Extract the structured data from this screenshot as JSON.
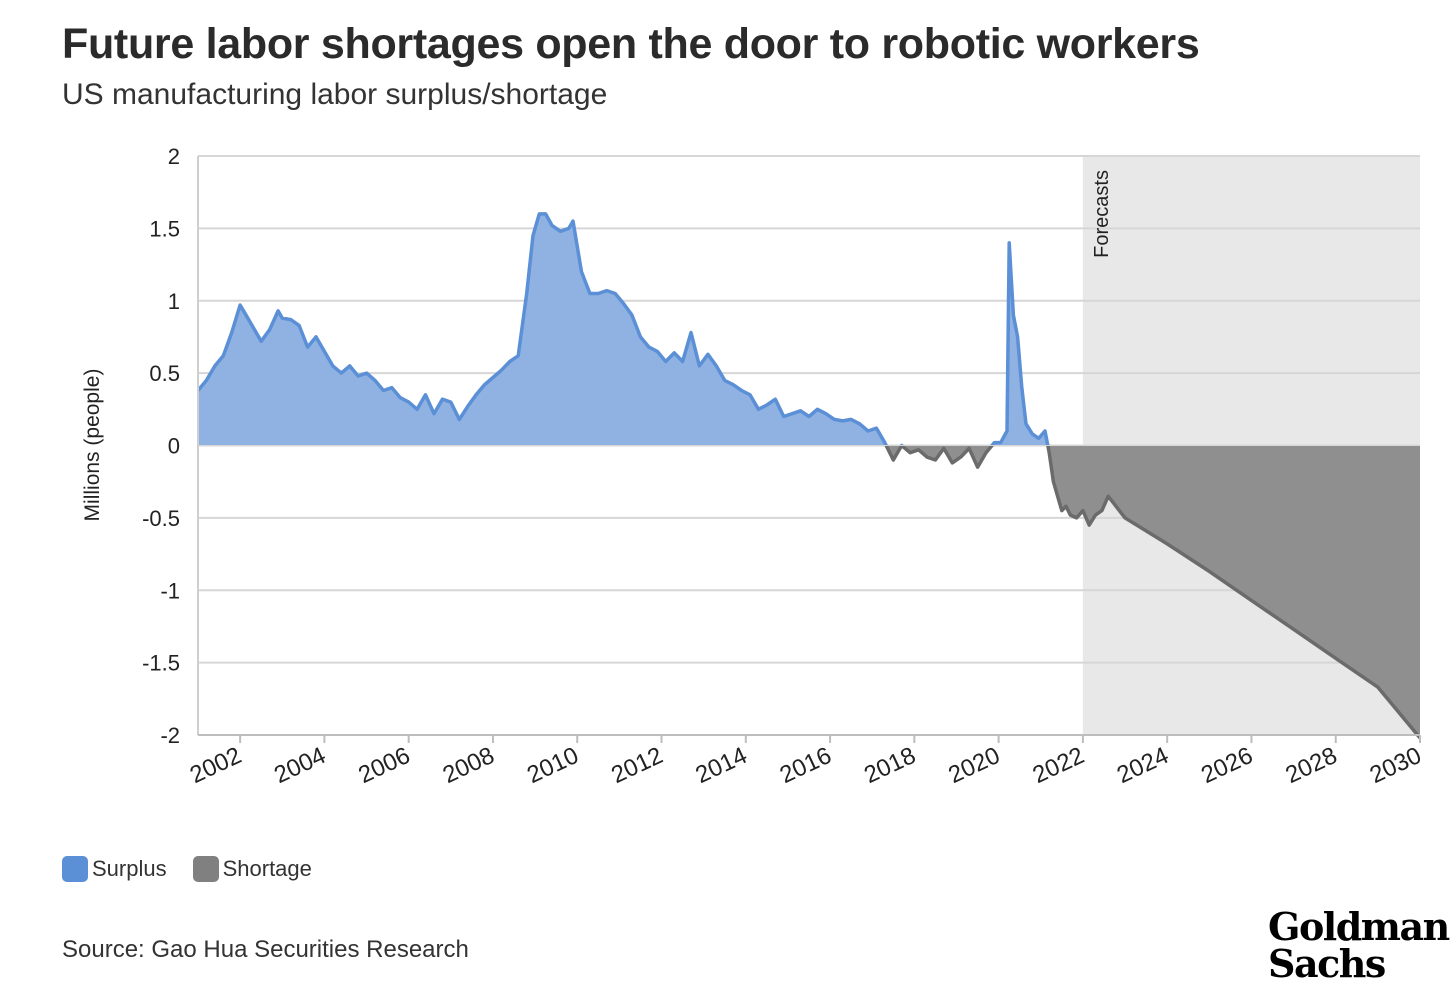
{
  "title": "Future labor shortages open the door to robotic workers",
  "subtitle": "US manufacturing labor surplus/shortage",
  "source": "Source: Gao Hua Securities Research",
  "logo": {
    "line1": "Goldman",
    "line2": "Sachs"
  },
  "colors": {
    "surplus": "#8fb2e3",
    "surplus_line": "#5b8fd6",
    "shortage": "#8f8f8f",
    "shortage_line": "#6b6b6b",
    "forecast_shade": "#e8e8e8",
    "grid": "#d6d6d6"
  },
  "chart_data": {
    "type": "area",
    "title": "Future labor shortages open the door to robotic workers",
    "subtitle": "US manufacturing labor surplus/shortage",
    "ylabel": "Millions (people)",
    "xlabel": "",
    "xlim": [
      2001.0,
      2030.0
    ],
    "ylim": [
      -2,
      2
    ],
    "yticks": [
      2,
      1.5,
      1,
      0.5,
      0,
      -0.5,
      -1,
      -1.5,
      -2
    ],
    "ytick_labels": [
      "2",
      "1.5",
      "1",
      "0.5",
      "0",
      "-0.5",
      "-1",
      "-1.5",
      "-2"
    ],
    "xticks": [
      2002,
      2004,
      2006,
      2008,
      2010,
      2012,
      2014,
      2016,
      2018,
      2020,
      2022,
      2024,
      2026,
      2028,
      2030
    ],
    "xtick_labels": [
      "2002",
      "2004",
      "2006",
      "2008",
      "2010",
      "2012",
      "2014",
      "2016",
      "2018",
      "2020",
      "2022",
      "2024",
      "2026",
      "2028",
      "2030"
    ],
    "forecast": {
      "start": 2022.0,
      "end": 2030.0,
      "label": "Forecasts"
    },
    "grid": true,
    "legend": {
      "position": "bottom-left",
      "entries": [
        {
          "name": "Surplus",
          "color": "#5b8fd6"
        },
        {
          "name": "Shortage",
          "color": "#808080"
        }
      ]
    },
    "series": [
      {
        "name": "US manufacturing labor surplus/shortage",
        "x": [
          2001.0,
          2001.2,
          2001.4,
          2001.6,
          2001.8,
          2002.0,
          2002.1,
          2002.3,
          2002.5,
          2002.7,
          2002.9,
          2003.0,
          2003.2,
          2003.4,
          2003.6,
          2003.8,
          2004.0,
          2004.2,
          2004.4,
          2004.6,
          2004.8,
          2005.0,
          2005.2,
          2005.4,
          2005.6,
          2005.8,
          2006.0,
          2006.2,
          2006.4,
          2006.6,
          2006.8,
          2007.0,
          2007.2,
          2007.4,
          2007.6,
          2007.8,
          2008.0,
          2008.2,
          2008.4,
          2008.6,
          2008.8,
          2008.95,
          2009.1,
          2009.25,
          2009.4,
          2009.6,
          2009.8,
          2009.9,
          2010.1,
          2010.3,
          2010.5,
          2010.7,
          2010.9,
          2011.1,
          2011.3,
          2011.5,
          2011.7,
          2011.9,
          2012.1,
          2012.3,
          2012.5,
          2012.7,
          2012.9,
          2013.1,
          2013.3,
          2013.5,
          2013.7,
          2013.9,
          2014.1,
          2014.3,
          2014.5,
          2014.7,
          2014.9,
          2015.1,
          2015.3,
          2015.5,
          2015.7,
          2015.9,
          2016.1,
          2016.3,
          2016.5,
          2016.7,
          2016.9,
          2017.1,
          2017.3,
          2017.5,
          2017.7,
          2017.9,
          2018.1,
          2018.3,
          2018.5,
          2018.7,
          2018.9,
          2019.1,
          2019.3,
          2019.5,
          2019.7,
          2019.9,
          2020.05,
          2020.2,
          2020.25,
          2020.35,
          2020.45,
          2020.55,
          2020.65,
          2020.8,
          2020.95,
          2021.1,
          2021.2,
          2021.3,
          2021.4,
          2021.5,
          2021.6,
          2021.7,
          2021.85,
          2022.0,
          2022.15,
          2022.3,
          2022.45,
          2022.6,
          2023.0,
          2024.0,
          2025.0,
          2026.0,
          2027.0,
          2028.0,
          2029.0,
          2030.0
        ],
        "y": [
          0.38,
          0.45,
          0.55,
          0.62,
          0.78,
          0.97,
          0.92,
          0.82,
          0.72,
          0.8,
          0.93,
          0.88,
          0.87,
          0.83,
          0.68,
          0.75,
          0.65,
          0.55,
          0.5,
          0.55,
          0.48,
          0.5,
          0.45,
          0.38,
          0.4,
          0.33,
          0.3,
          0.25,
          0.35,
          0.22,
          0.32,
          0.3,
          0.18,
          0.27,
          0.35,
          0.42,
          0.47,
          0.52,
          0.58,
          0.62,
          1.05,
          1.45,
          1.6,
          1.6,
          1.52,
          1.48,
          1.5,
          1.55,
          1.2,
          1.05,
          1.05,
          1.07,
          1.05,
          0.98,
          0.9,
          0.75,
          0.68,
          0.65,
          0.58,
          0.64,
          0.58,
          0.78,
          0.55,
          0.63,
          0.55,
          0.45,
          0.42,
          0.38,
          0.35,
          0.25,
          0.28,
          0.32,
          0.2,
          0.22,
          0.24,
          0.2,
          0.25,
          0.22,
          0.18,
          0.17,
          0.18,
          0.15,
          0.1,
          0.12,
          0.02,
          -0.1,
          0.0,
          -0.05,
          -0.03,
          -0.08,
          -0.1,
          -0.02,
          -0.12,
          -0.08,
          -0.02,
          -0.15,
          -0.05,
          0.02,
          0.02,
          0.1,
          1.4,
          0.9,
          0.75,
          0.4,
          0.15,
          0.08,
          0.05,
          0.1,
          -0.05,
          -0.25,
          -0.35,
          -0.45,
          -0.42,
          -0.48,
          -0.5,
          -0.45,
          -0.55,
          -0.48,
          -0.45,
          -0.35,
          -0.5,
          -0.68,
          -0.87,
          -1.07,
          -1.27,
          -1.47,
          -1.67,
          -2.02
        ]
      }
    ]
  }
}
